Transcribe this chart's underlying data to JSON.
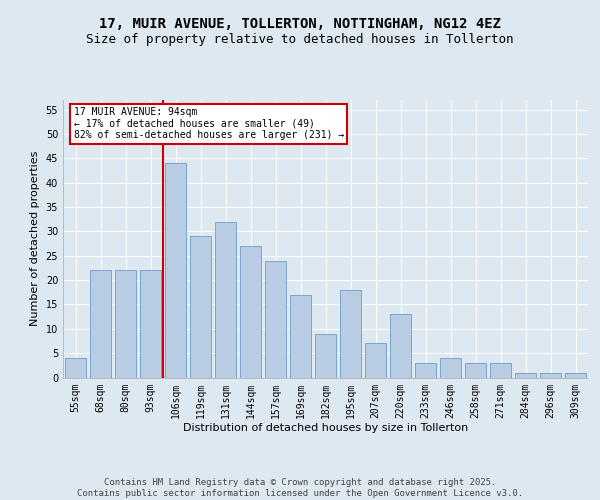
{
  "title": "17, MUIR AVENUE, TOLLERTON, NOTTINGHAM, NG12 4EZ",
  "subtitle": "Size of property relative to detached houses in Tollerton",
  "xlabel": "Distribution of detached houses by size in Tollerton",
  "ylabel": "Number of detached properties",
  "categories": [
    "55sqm",
    "68sqm",
    "80sqm",
    "93sqm",
    "106sqm",
    "119sqm",
    "131sqm",
    "144sqm",
    "157sqm",
    "169sqm",
    "182sqm",
    "195sqm",
    "207sqm",
    "220sqm",
    "233sqm",
    "246sqm",
    "258sqm",
    "271sqm",
    "284sqm",
    "296sqm",
    "309sqm"
  ],
  "values": [
    4,
    22,
    22,
    22,
    44,
    29,
    32,
    27,
    24,
    17,
    9,
    18,
    7,
    13,
    3,
    4,
    3,
    3,
    1,
    1,
    1
  ],
  "bar_color": "#b8cce4",
  "bar_edgecolor": "#5b8fc9",
  "highlight_index": 4,
  "red_line_color": "#cc0000",
  "annotation_text": "17 MUIR AVENUE: 94sqm\n← 17% of detached houses are smaller (49)\n82% of semi-detached houses are larger (231) →",
  "annotation_box_color": "#ffffff",
  "annotation_box_edgecolor": "#cc0000",
  "ylim": [
    0,
    57
  ],
  "yticks": [
    0,
    5,
    10,
    15,
    20,
    25,
    30,
    35,
    40,
    45,
    50,
    55
  ],
  "background_color": "#dde8f0",
  "plot_background": "#dde8f0",
  "footer": "Contains HM Land Registry data © Crown copyright and database right 2025.\nContains public sector information licensed under the Open Government Licence v3.0.",
  "title_fontsize": 10,
  "subtitle_fontsize": 9,
  "axis_fontsize": 8,
  "tick_fontsize": 7,
  "footer_fontsize": 6.5
}
